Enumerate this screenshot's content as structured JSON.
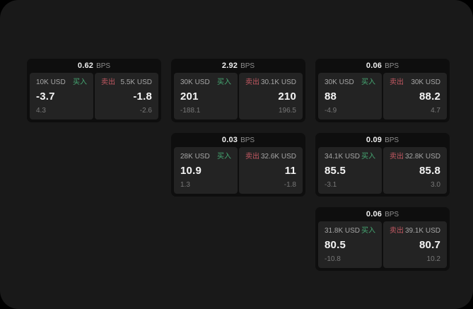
{
  "page": {
    "outer_background": "#000000",
    "surface_background": "#191919"
  },
  "colors": {
    "card_background": "#0e0e0e",
    "panel_background": "#232323",
    "value_text": "#f4f4f4",
    "label_text": "#a6a6a6",
    "delta_text": "#787878",
    "buy_accent": "#46a873",
    "sell_accent": "#c25862"
  },
  "labels": {
    "bps": "BPS",
    "buy": "买入",
    "sell": "卖出"
  },
  "cards": [
    {
      "bps": "0.62",
      "buy": {
        "amount": "10K USD",
        "value": "-3.7",
        "delta": "4.3"
      },
      "sell": {
        "amount": "5.5K USD",
        "value": "-1.8",
        "delta": "-2.6"
      }
    },
    {
      "bps": "2.92",
      "buy": {
        "amount": "30K USD",
        "value": "201",
        "delta": "-188.1"
      },
      "sell": {
        "amount": "30.1K USD",
        "value": "210",
        "delta": "196.5"
      }
    },
    {
      "bps": "0.06",
      "buy": {
        "amount": "30K USD",
        "value": "88",
        "delta": "-4.9"
      },
      "sell": {
        "amount": "30K USD",
        "value": "88.2",
        "delta": "4.7"
      }
    },
    {
      "bps": "0.03",
      "buy": {
        "amount": "28K USD",
        "value": "10.9",
        "delta": "1.3"
      },
      "sell": {
        "amount": "32.6K USD",
        "value": "11",
        "delta": "-1.8"
      }
    },
    {
      "bps": "0.09",
      "buy": {
        "amount": "34.1K USD",
        "value": "85.5",
        "delta": "-3.1"
      },
      "sell": {
        "amount": "32.8K USD",
        "value": "85.8",
        "delta": "3.0"
      }
    },
    {
      "bps": "0.06",
      "buy": {
        "amount": "31.8K USD",
        "value": "80.5",
        "delta": "-10.8"
      },
      "sell": {
        "amount": "39.1K USD",
        "value": "80.7",
        "delta": "10.2"
      }
    }
  ]
}
